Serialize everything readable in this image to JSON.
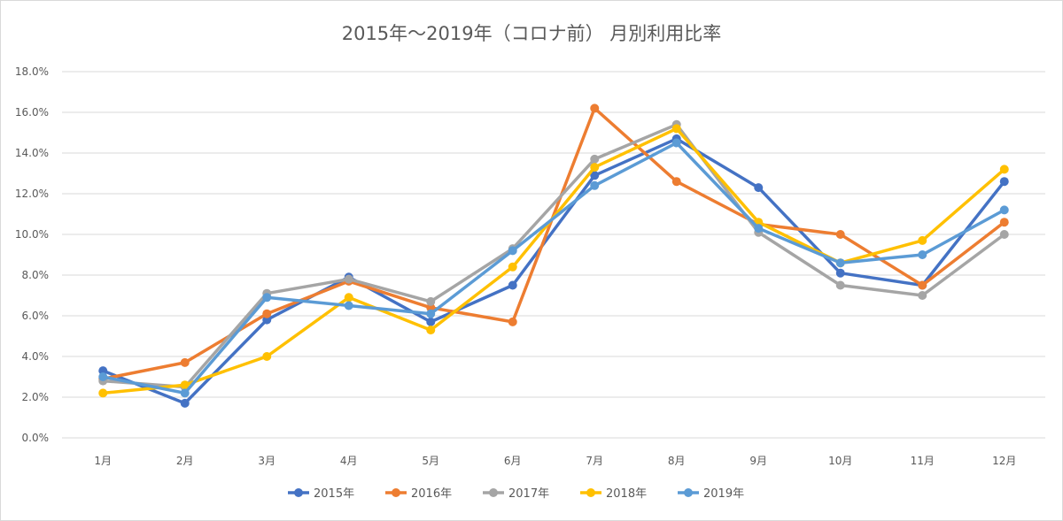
{
  "chart_data": {
    "type": "line",
    "title": "2015年～2019年（コロナ前） 月別利用比率",
    "xlabel": "",
    "ylabel": "",
    "categories": [
      "1月",
      "2月",
      "3月",
      "4月",
      "5月",
      "6月",
      "7月",
      "8月",
      "9月",
      "10月",
      "11月",
      "12月"
    ],
    "y_ticks": [
      "0.0%",
      "2.0%",
      "4.0%",
      "6.0%",
      "8.0%",
      "10.0%",
      "12.0%",
      "14.0%",
      "16.0%",
      "18.0%"
    ],
    "ylim": [
      0,
      18
    ],
    "y_unit": "%",
    "grid": "horizontal",
    "legend_position": "bottom",
    "series": [
      {
        "name": "2015年",
        "color": "#4472C4",
        "values": [
          3.3,
          1.7,
          5.8,
          7.9,
          5.7,
          7.5,
          12.9,
          14.7,
          12.3,
          8.1,
          7.5,
          12.6
        ]
      },
      {
        "name": "2016年",
        "color": "#ED7D31",
        "values": [
          2.9,
          3.7,
          6.1,
          7.7,
          6.4,
          5.7,
          16.2,
          12.6,
          10.5,
          10.0,
          7.5,
          10.6
        ]
      },
      {
        "name": "2017年",
        "color": "#A5A5A5",
        "values": [
          2.8,
          2.5,
          7.1,
          7.8,
          6.7,
          9.3,
          13.7,
          15.4,
          10.1,
          7.5,
          7.0,
          10.0
        ]
      },
      {
        "name": "2018年",
        "color": "#FFC000",
        "values": [
          2.2,
          2.6,
          4.0,
          6.9,
          5.3,
          8.4,
          13.3,
          15.2,
          10.6,
          8.6,
          9.7,
          13.2
        ]
      },
      {
        "name": "2019年",
        "color": "#5B9BD5",
        "values": [
          3.0,
          2.2,
          6.9,
          6.5,
          6.1,
          9.2,
          12.4,
          14.5,
          10.3,
          8.6,
          9.0,
          11.2
        ]
      }
    ]
  }
}
